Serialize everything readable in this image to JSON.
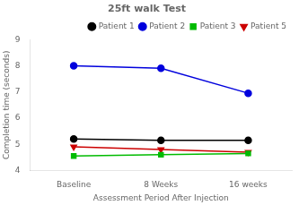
{
  "chart_data": {
    "type": "line",
    "title": "25ft walk Test",
    "x_label": "Assessment Period After Injection",
    "y_label": "Completion time (seconds)",
    "categories": [
      "Baseline",
      "8 Weeks",
      "16 weeks"
    ],
    "series": [
      {
        "name": "Patient 1",
        "color": "#000000",
        "marker": "circle",
        "values": [
          5.2,
          5.15,
          5.15
        ]
      },
      {
        "name": "Patient 2",
        "color": "#0000dd",
        "marker": "circle",
        "values": [
          8.0,
          7.9,
          6.95
        ]
      },
      {
        "name": "Patient 3",
        "color": "#00bb00",
        "marker": "square",
        "values": [
          4.55,
          4.6,
          4.65
        ]
      },
      {
        "name": "Patient 5",
        "color": "#cc0000",
        "marker": "triangle_down",
        "values": [
          4.9,
          4.8,
          4.7
        ]
      }
    ],
    "ylim": [
      4,
      9
    ],
    "yticks": [
      4,
      5,
      6,
      7,
      8,
      9
    ],
    "grid": false,
    "legend": "upper right"
  }
}
